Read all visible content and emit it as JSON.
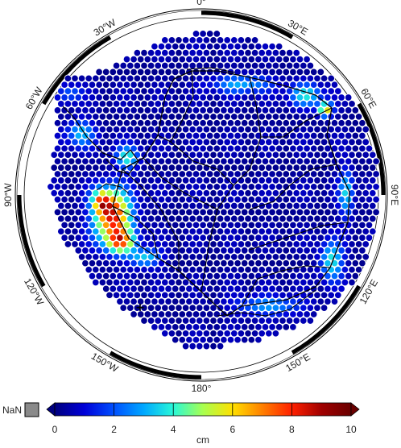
{
  "map": {
    "longitude_labels": [
      {
        "text": "0°",
        "lon": 0
      },
      {
        "text": "30°E",
        "lon": 30
      },
      {
        "text": "60°E",
        "lon": 60
      },
      {
        "text": "90°E",
        "lon": 90
      },
      {
        "text": "120°E",
        "lon": 120
      },
      {
        "text": "150°E",
        "lon": 150
      },
      {
        "text": "180°",
        "lon": 180
      },
      {
        "text": "150°W",
        "lon": -150
      },
      {
        "text": "120°W",
        "lon": -120
      },
      {
        "text": "90°W",
        "lon": -90
      },
      {
        "text": "60°W",
        "lon": -60
      },
      {
        "text": "30°W",
        "lon": -30
      }
    ],
    "marker_symbol": "+"
  },
  "colorbar": {
    "nan_label": "NaN",
    "unit_label": "cm",
    "range": [
      0,
      10
    ],
    "ticks": [
      "0",
      "2",
      "4",
      "6",
      "8",
      "10"
    ],
    "colors": {
      "stops": [
        "#00007f",
        "#0000d8",
        "#0050ff",
        "#00a8ff",
        "#28f8d8",
        "#a8ff50",
        "#ffe000",
        "#ff8000",
        "#ff2000",
        "#a00000",
        "#6a0000"
      ],
      "nan": "#8a8a8a",
      "sea": "#1040e8",
      "grounded": "#0a1aa0"
    }
  }
}
